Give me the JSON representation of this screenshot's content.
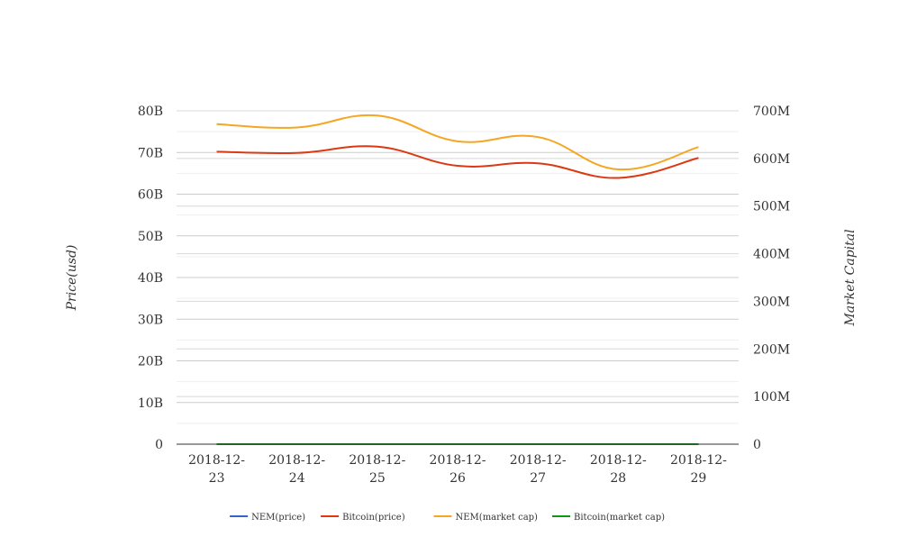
{
  "chart_data": {
    "type": "line",
    "x": [
      "2018-12-23",
      "2018-12-24",
      "2018-12-25",
      "2018-12-26",
      "2018-12-27",
      "2018-12-28",
      "2018-12-29"
    ],
    "x_tick_lines": [
      [
        "2018-12-",
        "23"
      ],
      [
        "2018-12-",
        "24"
      ],
      [
        "2018-12-",
        "25"
      ],
      [
        "2018-12-",
        "26"
      ],
      [
        "2018-12-",
        "27"
      ],
      [
        "2018-12-",
        "28"
      ],
      [
        "2018-12-",
        "29"
      ]
    ],
    "ylabel_left": "Price(usd)",
    "ylabel_right": "Market Capital",
    "ylim_left": [
      0,
      80000000000
    ],
    "ylim_right": [
      0,
      700000000
    ],
    "yticks_left": [
      "0",
      "10B",
      "20B",
      "30B",
      "40B",
      "50B",
      "60B",
      "70B",
      "80B"
    ],
    "yticks_right": [
      "0",
      "100M",
      "200M",
      "300M",
      "400M",
      "500M",
      "600M",
      "700M"
    ],
    "grid": true,
    "legend_position": "bottom",
    "series": [
      {
        "name": "NEM(price)",
        "axis": "left",
        "color": "#3366cc",
        "values": [
          0.07,
          0.07,
          0.08,
          0.07,
          0.07,
          0.06,
          0.07
        ]
      },
      {
        "name": "Bitcoin(price)",
        "axis": "left",
        "color": "#dc3912",
        "values": [
          70200000000,
          69900000000,
          71400000000,
          66800000000,
          67400000000,
          63900000000,
          68700000000
        ]
      },
      {
        "name": "NEM(market cap)",
        "axis": "right",
        "color": "#f5a623",
        "values": [
          672000000,
          665000000,
          690000000,
          636000000,
          645000000,
          577000000,
          624000000
        ]
      },
      {
        "name": "Bitcoin(market cap)",
        "axis": "right",
        "color": "#109618",
        "values": [
          0.2,
          0.2,
          0.2,
          0.2,
          0.2,
          0.2,
          0.2
        ]
      }
    ]
  }
}
